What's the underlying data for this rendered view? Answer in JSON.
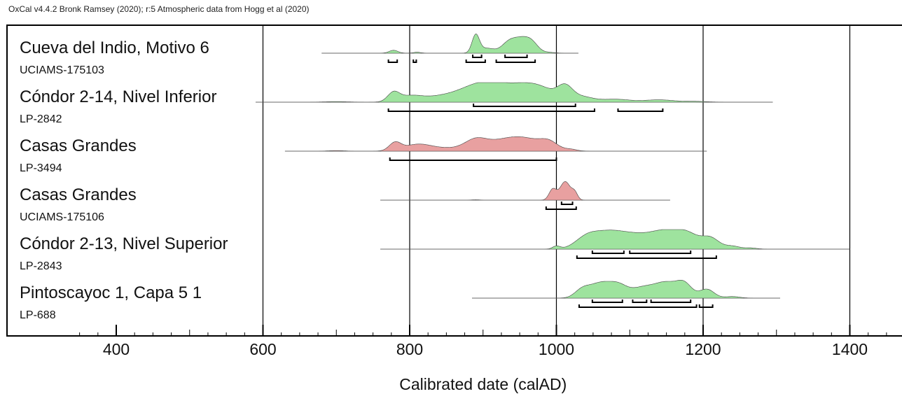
{
  "header": {
    "text": "OxCal v4.4.2 Bronk Ramsey (2020); r:5 Atmospheric data from Hogg et al (2020)"
  },
  "chart_data": {
    "type": "area",
    "title": "",
    "xlabel": "Calibrated date (calAD)",
    "ylabel": "",
    "xlim": [
      340,
      1470
    ],
    "xticks": [
      400,
      600,
      800,
      1000,
      1200,
      1400
    ],
    "grid_x": [
      600,
      800,
      1000,
      1200,
      1400
    ],
    "colors": {
      "green": "#9ee39e",
      "red": "#e8a0a0",
      "line": "#000000"
    },
    "series": [
      {
        "name": "Cueva del Indio, Motivo 6",
        "code": "UCIAMS-175103",
        "color": "green",
        "range": [
          680,
          1030
        ],
        "peaks": [
          [
            778,
            6,
            0.15
          ],
          [
            810,
            5,
            0.05
          ],
          [
            890,
            5,
            0.9
          ],
          [
            905,
            10,
            0.25
          ],
          [
            935,
            10,
            0.5
          ],
          [
            955,
            12,
            0.72
          ],
          [
            968,
            8,
            0.25
          ],
          [
            990,
            8,
            0.04
          ]
        ],
        "hpd": [
          [
            [
              930,
              960
            ],
            [
              886,
              898
            ]
          ],
          [
            [
              771,
              783
            ],
            [
              805,
              809
            ],
            [
              877,
              903
            ],
            [
              918,
              971
            ]
          ]
        ]
      },
      {
        "name": "Cóndor 2-14, Nivel Inferior",
        "code": "LP-2842",
        "color": "green",
        "range": [
          590,
          1295
        ],
        "peaks": [
          [
            778,
            8,
            0.45
          ],
          [
            800,
            15,
            0.25
          ],
          [
            845,
            30,
            0.3
          ],
          [
            895,
            25,
            0.72
          ],
          [
            935,
            28,
            0.6
          ],
          [
            975,
            25,
            0.68
          ],
          [
            1012,
            10,
            0.62
          ],
          [
            1035,
            15,
            0.25
          ],
          [
            1080,
            20,
            0.15
          ],
          [
            1140,
            20,
            0.12
          ],
          [
            1190,
            15,
            0.04
          ],
          [
            700,
            15,
            0.03
          ]
        ],
        "hpd": [
          [
            [
              887,
              1026
            ]
          ],
          [
            [
              771,
              1052
            ],
            [
              1084,
              1145
            ]
          ]
        ]
      },
      {
        "name": "Casas Grandes",
        "code": "LP-3494",
        "color": "red",
        "range": [
          630,
          1205
        ],
        "peaks": [
          [
            780,
            8,
            0.4
          ],
          [
            810,
            18,
            0.32
          ],
          [
            850,
            25,
            0.15
          ],
          [
            890,
            15,
            0.52
          ],
          [
            920,
            20,
            0.3
          ],
          [
            955,
            25,
            0.65
          ],
          [
            990,
            12,
            0.35
          ],
          [
            1020,
            8,
            0.08
          ],
          [
            700,
            10,
            0.03
          ]
        ],
        "hpd": [
          [],
          [
            [
              773,
              1000
            ]
          ]
        ]
      },
      {
        "name": "Casas Grandes",
        "code": "UCIAMS-175106",
        "color": "red",
        "range": [
          760,
          1155
        ],
        "peaks": [
          [
            995,
            5,
            0.55
          ],
          [
            1012,
            7,
            0.95
          ],
          [
            1025,
            4,
            0.35
          ],
          [
            890,
            5,
            0.02
          ]
        ],
        "hpd": [
          [
            [
              1007,
              1022
            ]
          ],
          [
            [
              986,
              1027
            ]
          ]
        ]
      },
      {
        "name": "Cóndor 2-13, Nivel Superior",
        "code": "LP-2843",
        "color": "green",
        "range": [
          760,
          1400
        ],
        "peaks": [
          [
            1000,
            5,
            0.15
          ],
          [
            1040,
            15,
            0.45
          ],
          [
            1070,
            22,
            0.8
          ],
          [
            1110,
            22,
            0.58
          ],
          [
            1150,
            20,
            0.82
          ],
          [
            1180,
            15,
            0.62
          ],
          [
            1210,
            12,
            0.55
          ],
          [
            1240,
            10,
            0.15
          ],
          [
            1265,
            8,
            0.06
          ]
        ],
        "hpd": [
          [
            [
              1049,
              1092
            ],
            [
              1100,
              1183
            ]
          ],
          [
            [
              1028,
              1218
            ]
          ]
        ]
      },
      {
        "name": "Pintoscayoc 1, Capa 5 1",
        "code": "LP-688",
        "color": "green",
        "range": [
          885,
          1305
        ],
        "peaks": [
          [
            1035,
            10,
            0.38
          ],
          [
            1060,
            15,
            0.75
          ],
          [
            1085,
            12,
            0.55
          ],
          [
            1115,
            15,
            0.45
          ],
          [
            1150,
            18,
            0.8
          ],
          [
            1175,
            10,
            0.55
          ],
          [
            1205,
            10,
            0.45
          ],
          [
            1240,
            10,
            0.08
          ]
        ],
        "hpd": [
          [
            [
              1049,
              1090
            ],
            [
              1104,
              1123
            ],
            [
              1129,
              1183
            ]
          ],
          [
            [
              1031,
              1191
            ],
            [
              1195,
              1213
            ]
          ]
        ]
      }
    ]
  }
}
